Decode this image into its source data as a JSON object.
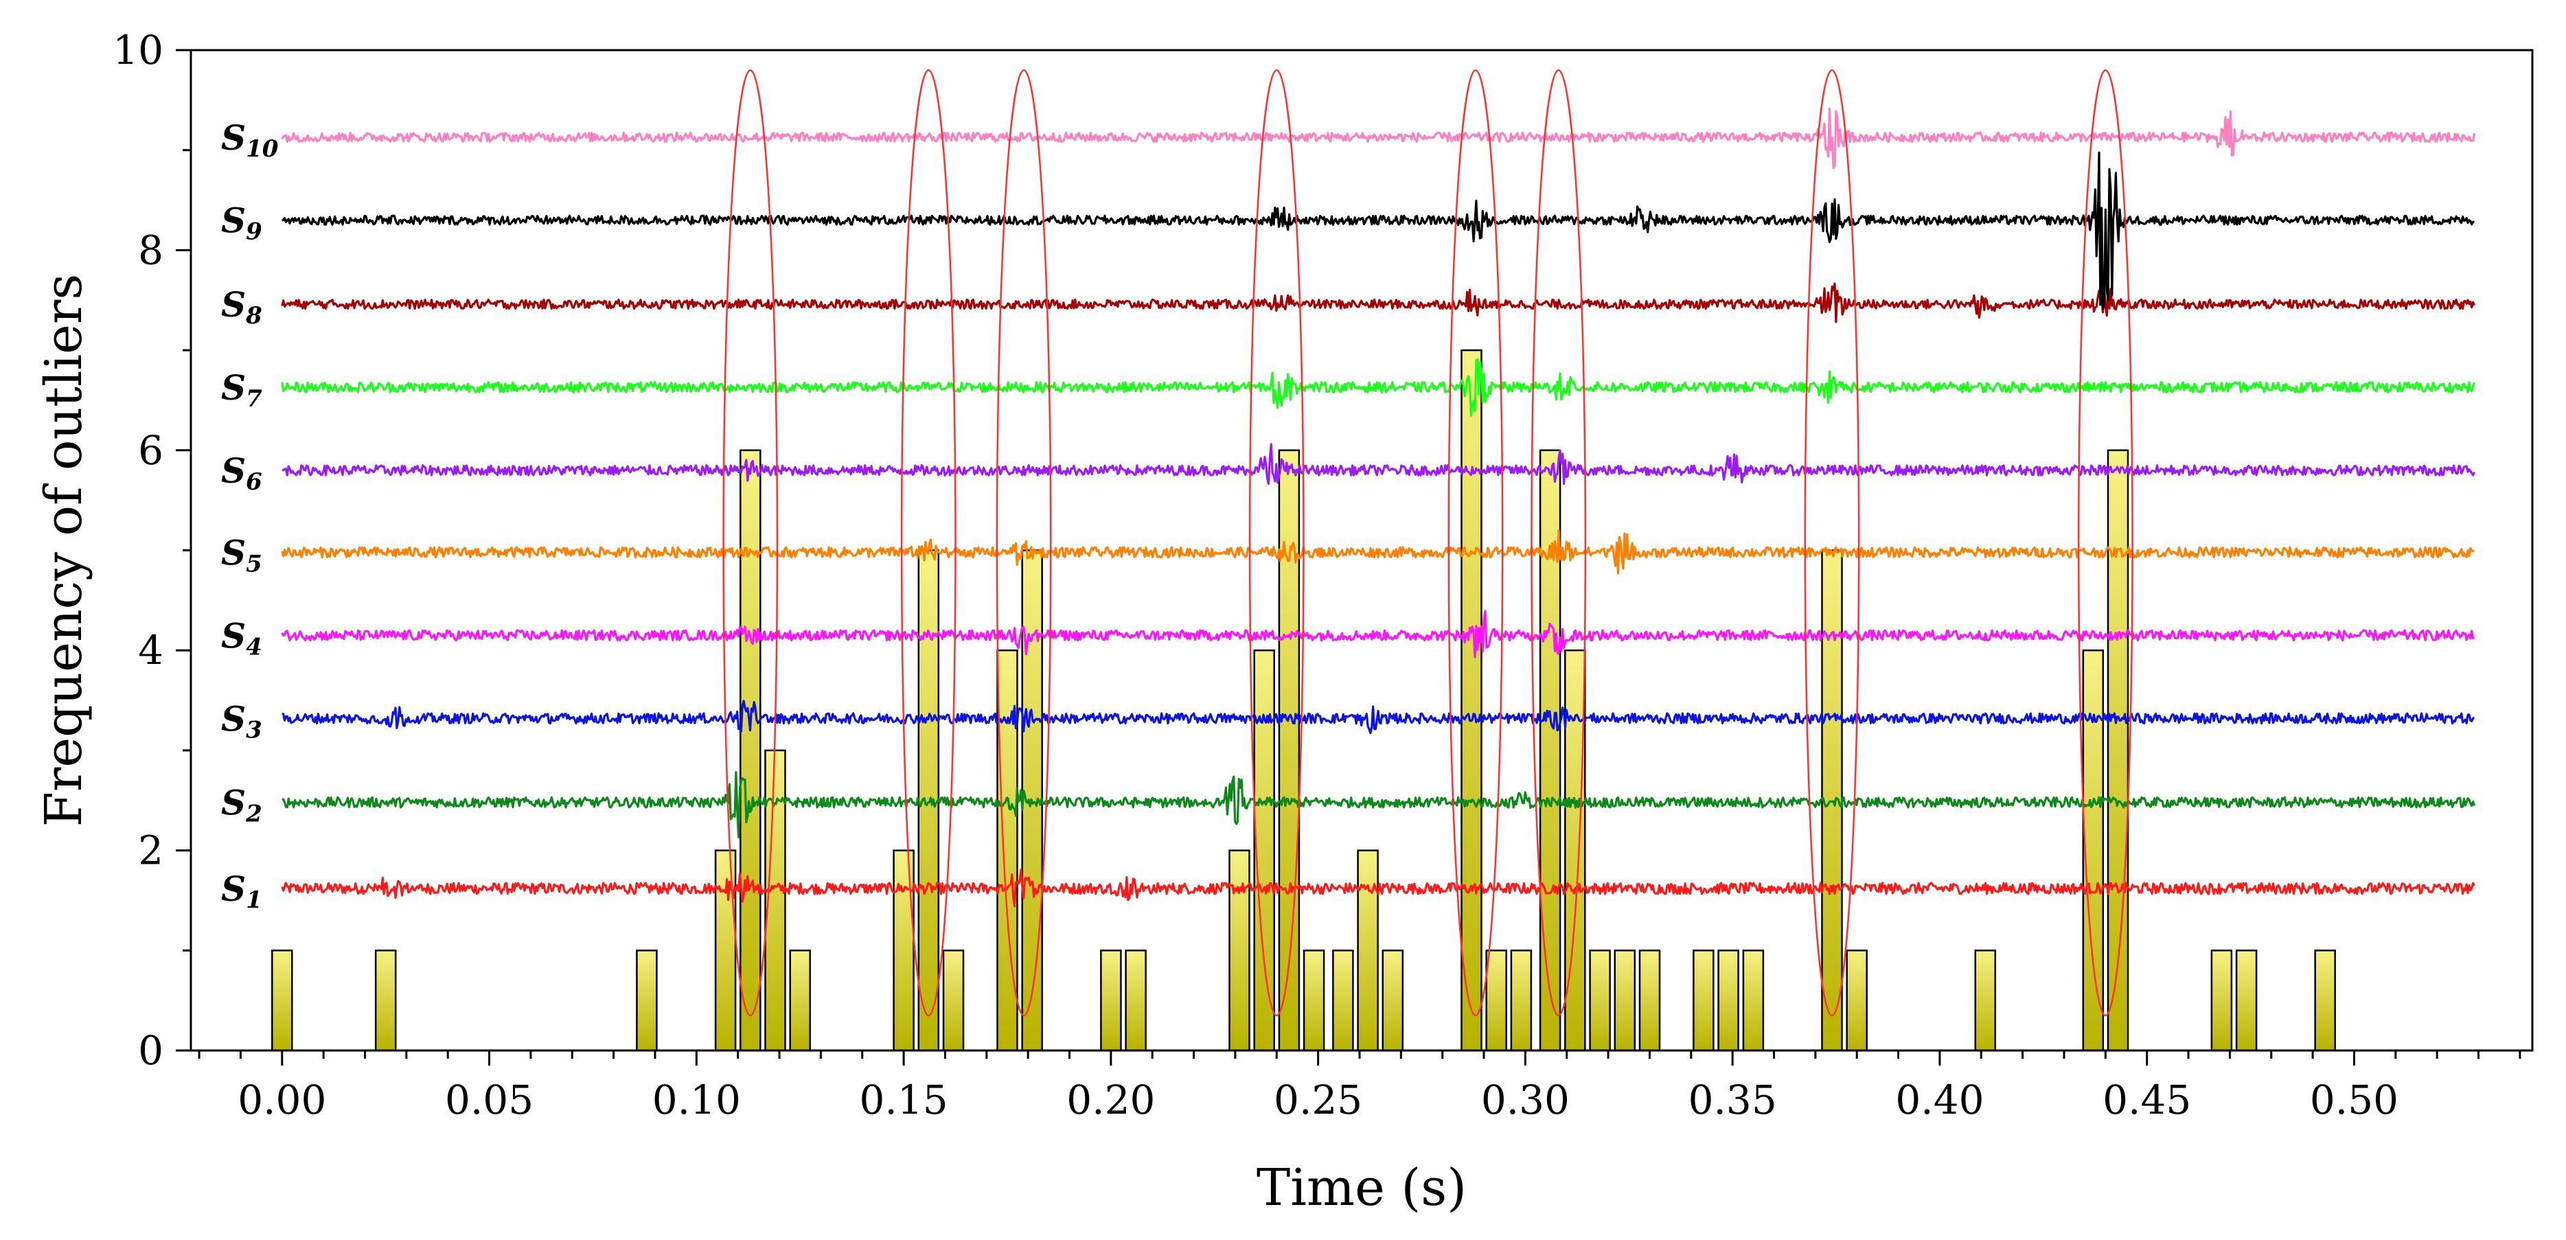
{
  "chart_data": {
    "type": "bar",
    "title": "",
    "xlabel": "Time (s)",
    "ylabel": "Frequency of outliers",
    "xlim": [
      -0.022,
      0.543
    ],
    "ylim": [
      0,
      10
    ],
    "x_ticks": [
      "0.00",
      "0.05",
      "0.10",
      "0.15",
      "0.20",
      "0.25",
      "0.30",
      "0.35",
      "0.40",
      "0.45",
      "0.50"
    ],
    "y_ticks": [
      "0",
      "2",
      "4",
      "6",
      "8",
      "10"
    ],
    "bar_color_top": "#f7f285",
    "bar_color_bottom": "#b8b200",
    "bars": [
      {
        "x": 0.0,
        "value": 1
      },
      {
        "x": 0.025,
        "value": 1
      },
      {
        "x": 0.088,
        "value": 1
      },
      {
        "x": 0.107,
        "value": 2
      },
      {
        "x": 0.113,
        "value": 6
      },
      {
        "x": 0.119,
        "value": 3
      },
      {
        "x": 0.125,
        "value": 1
      },
      {
        "x": 0.15,
        "value": 2
      },
      {
        "x": 0.156,
        "value": 5
      },
      {
        "x": 0.162,
        "value": 1
      },
      {
        "x": 0.175,
        "value": 4
      },
      {
        "x": 0.181,
        "value": 5
      },
      {
        "x": 0.2,
        "value": 1
      },
      {
        "x": 0.206,
        "value": 1
      },
      {
        "x": 0.231,
        "value": 2
      },
      {
        "x": 0.237,
        "value": 4
      },
      {
        "x": 0.243,
        "value": 6
      },
      {
        "x": 0.249,
        "value": 1
      },
      {
        "x": 0.256,
        "value": 1
      },
      {
        "x": 0.262,
        "value": 2
      },
      {
        "x": 0.268,
        "value": 1
      },
      {
        "x": 0.287,
        "value": 7
      },
      {
        "x": 0.293,
        "value": 1
      },
      {
        "x": 0.299,
        "value": 1
      },
      {
        "x": 0.306,
        "value": 6
      },
      {
        "x": 0.312,
        "value": 4
      },
      {
        "x": 0.318,
        "value": 1
      },
      {
        "x": 0.324,
        "value": 1
      },
      {
        "x": 0.33,
        "value": 1
      },
      {
        "x": 0.343,
        "value": 1
      },
      {
        "x": 0.349,
        "value": 1
      },
      {
        "x": 0.355,
        "value": 1
      },
      {
        "x": 0.374,
        "value": 5
      },
      {
        "x": 0.38,
        "value": 1
      },
      {
        "x": 0.411,
        "value": 1
      },
      {
        "x": 0.437,
        "value": 4
      },
      {
        "x": 0.443,
        "value": 6
      },
      {
        "x": 0.468,
        "value": 1
      },
      {
        "x": 0.474,
        "value": 1
      },
      {
        "x": 0.493,
        "value": 1
      }
    ],
    "bar_width": 0.0048,
    "signal_t_range": [
      0.0,
      0.529
    ],
    "signals": [
      {
        "name": "S",
        "sub": "1",
        "baseline": 1.62,
        "color": "#ff1a1a",
        "noise": 0.055,
        "bursts": [
          {
            "t": 0.026,
            "amp": 0.12
          },
          {
            "t": 0.11,
            "amp": 0.22
          },
          {
            "t": 0.178,
            "amp": 0.2
          },
          {
            "t": 0.205,
            "amp": 0.12
          }
        ]
      },
      {
        "name": "S",
        "sub": "2",
        "baseline": 2.48,
        "color": "#0c8a1a",
        "noise": 0.05,
        "bursts": [
          {
            "t": 0.11,
            "amp": 0.45
          },
          {
            "t": 0.178,
            "amp": 0.15
          },
          {
            "t": 0.23,
            "amp": 0.3
          },
          {
            "t": 0.299,
            "amp": 0.1
          }
        ]
      },
      {
        "name": "S",
        "sub": "3",
        "baseline": 3.32,
        "color": "#0a14e6",
        "noise": 0.05,
        "bursts": [
          {
            "t": 0.027,
            "amp": 0.12
          },
          {
            "t": 0.112,
            "amp": 0.22
          },
          {
            "t": 0.178,
            "amp": 0.18
          },
          {
            "t": 0.262,
            "amp": 0.18
          },
          {
            "t": 0.308,
            "amp": 0.15
          }
        ]
      },
      {
        "name": "S",
        "sub": "4",
        "baseline": 4.15,
        "color": "#ff14ff",
        "noise": 0.05,
        "bursts": [
          {
            "t": 0.113,
            "amp": 0.12
          },
          {
            "t": 0.179,
            "amp": 0.15
          },
          {
            "t": 0.289,
            "amp": 0.28
          },
          {
            "t": 0.308,
            "amp": 0.25
          }
        ]
      },
      {
        "name": "S",
        "sub": "5",
        "baseline": 4.98,
        "color": "#ff8000",
        "noise": 0.05,
        "bursts": [
          {
            "t": 0.156,
            "amp": 0.15
          },
          {
            "t": 0.178,
            "amp": 0.12
          },
          {
            "t": 0.243,
            "amp": 0.1
          },
          {
            "t": 0.308,
            "amp": 0.2
          },
          {
            "t": 0.323,
            "amp": 0.2
          }
        ]
      },
      {
        "name": "S",
        "sub": "6",
        "baseline": 5.8,
        "color": "#9b1aff",
        "noise": 0.05,
        "bursts": [
          {
            "t": 0.113,
            "amp": 0.12
          },
          {
            "t": 0.239,
            "amp": 0.35
          },
          {
            "t": 0.309,
            "amp": 0.18
          },
          {
            "t": 0.35,
            "amp": 0.2
          }
        ]
      },
      {
        "name": "S",
        "sub": "7",
        "baseline": 6.63,
        "color": "#19ff19",
        "noise": 0.05,
        "bursts": [
          {
            "t": 0.241,
            "amp": 0.22
          },
          {
            "t": 0.288,
            "amp": 0.3
          },
          {
            "t": 0.309,
            "amp": 0.12
          },
          {
            "t": 0.374,
            "amp": 0.15
          }
        ]
      },
      {
        "name": "S",
        "sub": "8",
        "baseline": 7.46,
        "color": "#a80000",
        "noise": 0.045,
        "bursts": [
          {
            "t": 0.241,
            "amp": 0.12
          },
          {
            "t": 0.288,
            "amp": 0.22
          },
          {
            "t": 0.374,
            "amp": 0.25
          },
          {
            "t": 0.41,
            "amp": 0.18
          },
          {
            "t": 0.44,
            "amp": 0.2
          }
        ]
      },
      {
        "name": "S",
        "sub": "9",
        "baseline": 8.3,
        "color": "#000000",
        "noise": 0.045,
        "bursts": [
          {
            "t": 0.241,
            "amp": 0.12
          },
          {
            "t": 0.288,
            "amp": 0.25
          },
          {
            "t": 0.328,
            "amp": 0.15
          },
          {
            "t": 0.374,
            "amp": 0.22
          },
          {
            "t": 0.44,
            "amp": 1.2
          }
        ]
      },
      {
        "name": "S",
        "sub": "10",
        "baseline": 9.13,
        "color": "#ff80c0",
        "noise": 0.045,
        "bursts": [
          {
            "t": 0.374,
            "amp": 0.35
          },
          {
            "t": 0.47,
            "amp": 0.3
          }
        ]
      }
    ],
    "highlight_ellipses": [
      {
        "t": 0.113,
        "y_min": 0.35,
        "y_max": 9.8,
        "half_width": 0.0065
      },
      {
        "t": 0.156,
        "y_min": 0.35,
        "y_max": 9.8,
        "half_width": 0.0065
      },
      {
        "t": 0.179,
        "y_min": 0.35,
        "y_max": 9.8,
        "half_width": 0.0065
      },
      {
        "t": 0.24,
        "y_min": 0.35,
        "y_max": 9.8,
        "half_width": 0.0065
      },
      {
        "t": 0.288,
        "y_min": 0.35,
        "y_max": 9.8,
        "half_width": 0.0065
      },
      {
        "t": 0.308,
        "y_min": 0.35,
        "y_max": 9.8,
        "half_width": 0.0065
      },
      {
        "t": 0.374,
        "y_min": 0.35,
        "y_max": 9.8,
        "half_width": 0.0065
      },
      {
        "t": 0.44,
        "y_min": 0.35,
        "y_max": 9.8,
        "half_width": 0.0065
      }
    ],
    "ellipse_color": "#ff3030"
  }
}
